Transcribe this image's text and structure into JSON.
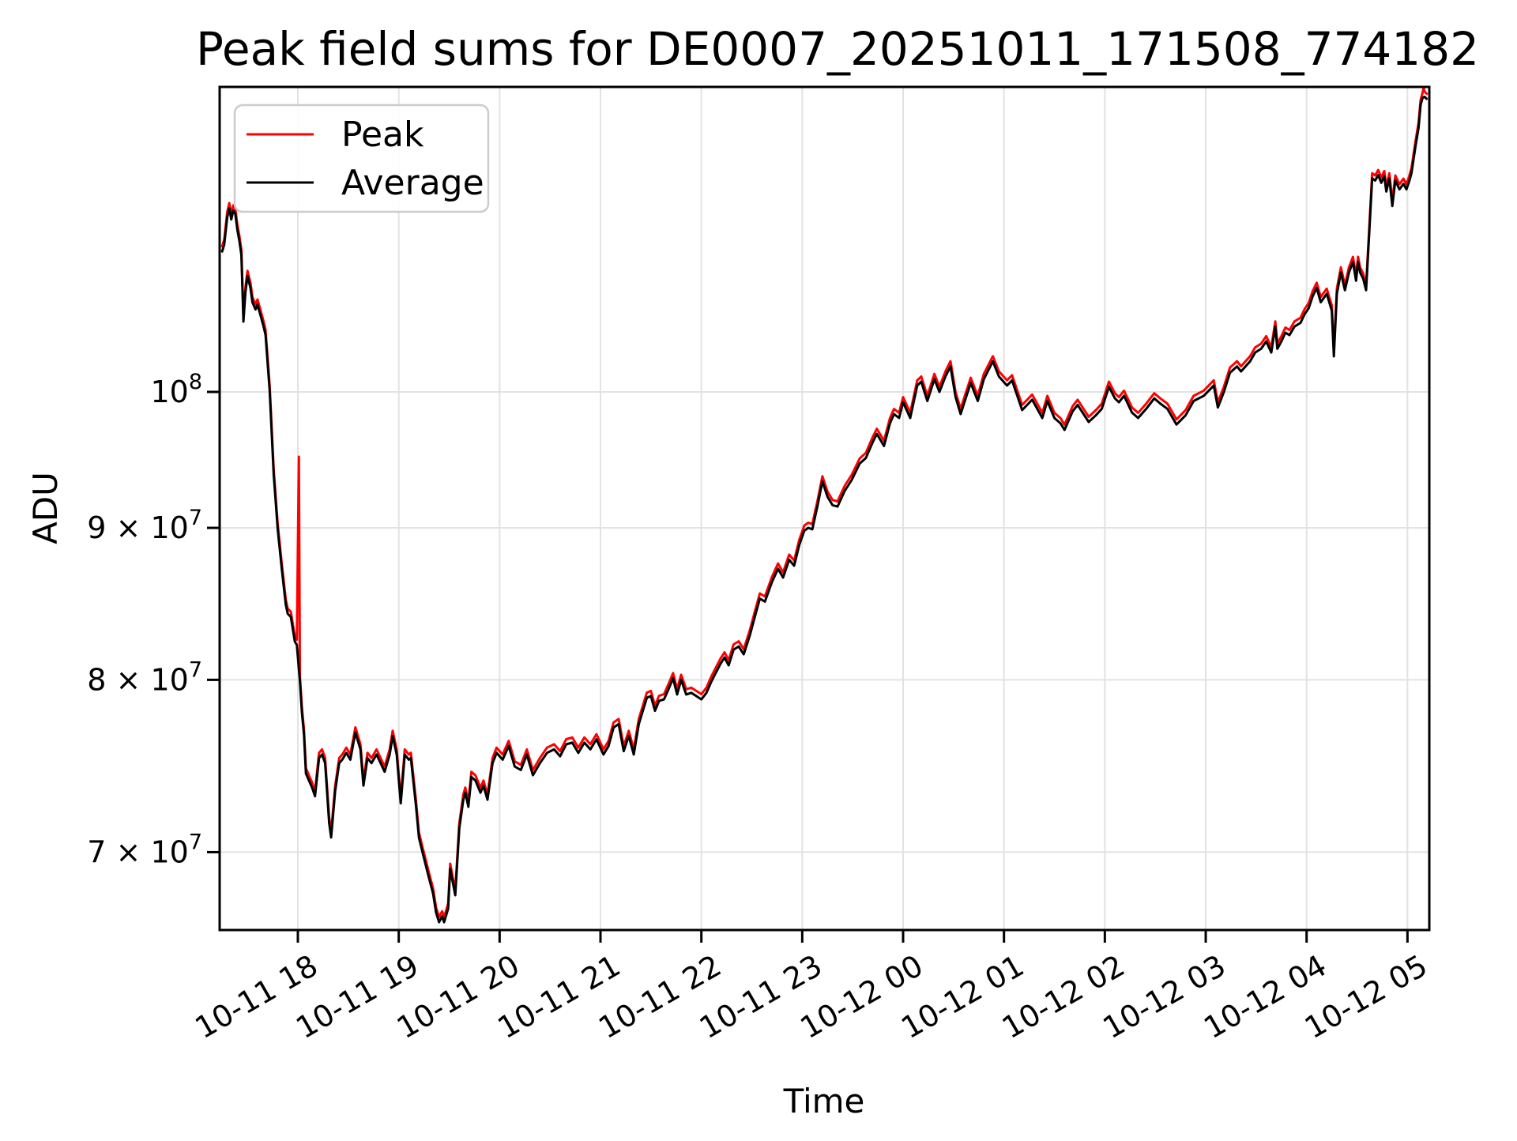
{
  "figure": {
    "background": "#ffffff",
    "title": "Peak field sums for DE0007_20251011_171508_774182"
  },
  "chart_data": {
    "type": "line",
    "title": "Peak field sums for DE0007_20251011_171508_774182",
    "xlabel": "Time",
    "ylabel": "ADU",
    "yscale": "log",
    "grid": true,
    "grid_color": "#e2e2e2",
    "axis_color": "#000000",
    "ylim_e7": [
      6.58,
      12.71
    ],
    "xlim_hours": [
      17.22,
      29.23
    ],
    "x_ticks": [
      {
        "t": 18,
        "label": "10-11 18"
      },
      {
        "t": 19,
        "label": "10-11 19"
      },
      {
        "t": 20,
        "label": "10-11 20"
      },
      {
        "t": 21,
        "label": "10-11 21"
      },
      {
        "t": 22,
        "label": "10-11 22"
      },
      {
        "t": 23,
        "label": "10-11 23"
      },
      {
        "t": 24,
        "label": "10-12 00"
      },
      {
        "t": 25,
        "label": "10-12 01"
      },
      {
        "t": 26,
        "label": "10-12 02"
      },
      {
        "t": 27,
        "label": "10-12 03"
      },
      {
        "t": 28,
        "label": "10-12 04"
      },
      {
        "t": 29,
        "label": "10-12 05"
      }
    ],
    "y_ticks": [
      {
        "v_e7": 10,
        "base": "10",
        "sup": "8"
      },
      {
        "v_e7": 9,
        "base": "9 × 10",
        "sup": "7"
      },
      {
        "v_e7": 8,
        "base": "8 × 10",
        "sup": "7"
      },
      {
        "v_e7": 7,
        "base": "7 × 10",
        "sup": "7"
      }
    ],
    "legend": {
      "position": "upper-left",
      "border_color": "#cccccc",
      "background": "#ffffff"
    },
    "series": [
      {
        "name": "Peak",
        "color": "#ff0000",
        "derived": "average_times_ratio",
        "offset_ratio": 1.004,
        "anomalies_e7": [
          [
            18.01,
            9.51
          ],
          [
            29.16,
            12.66
          ]
        ]
      },
      {
        "name": "Average",
        "color": "#000000",
        "unit_scale": 10000000.0,
        "points_e7": [
          [
            17.25,
            11.15
          ],
          [
            17.27,
            11.21
          ],
          [
            17.3,
            11.45
          ],
          [
            17.32,
            11.53
          ],
          [
            17.34,
            11.43
          ],
          [
            17.36,
            11.51
          ],
          [
            17.38,
            11.48
          ],
          [
            17.4,
            11.34
          ],
          [
            17.42,
            11.24
          ],
          [
            17.44,
            11.12
          ],
          [
            17.46,
            10.56
          ],
          [
            17.48,
            10.8
          ],
          [
            17.5,
            10.94
          ],
          [
            17.53,
            10.84
          ],
          [
            17.55,
            10.72
          ],
          [
            17.58,
            10.66
          ],
          [
            17.6,
            10.7
          ],
          [
            17.63,
            10.61
          ],
          [
            17.66,
            10.52
          ],
          [
            17.68,
            10.45
          ],
          [
            17.72,
            10.01
          ],
          [
            17.76,
            9.38
          ],
          [
            17.8,
            8.99
          ],
          [
            17.84,
            8.72
          ],
          [
            17.88,
            8.48
          ],
          [
            17.9,
            8.42
          ],
          [
            17.93,
            8.4
          ],
          [
            17.97,
            8.24
          ],
          [
            17.99,
            8.22
          ],
          [
            18.02,
            7.99
          ],
          [
            18.04,
            7.8
          ],
          [
            18.06,
            7.67
          ],
          [
            18.08,
            7.44
          ],
          [
            18.11,
            7.4
          ],
          [
            18.14,
            7.36
          ],
          [
            18.17,
            7.31
          ],
          [
            18.21,
            7.53
          ],
          [
            18.24,
            7.55
          ],
          [
            18.27,
            7.5
          ],
          [
            18.31,
            7.16
          ],
          [
            18.33,
            7.08
          ],
          [
            18.37,
            7.34
          ],
          [
            18.41,
            7.5
          ],
          [
            18.44,
            7.52
          ],
          [
            18.48,
            7.56
          ],
          [
            18.52,
            7.52
          ],
          [
            18.57,
            7.68
          ],
          [
            18.62,
            7.58
          ],
          [
            18.65,
            7.37
          ],
          [
            18.69,
            7.53
          ],
          [
            18.73,
            7.5
          ],
          [
            18.78,
            7.55
          ],
          [
            18.82,
            7.5
          ],
          [
            18.86,
            7.45
          ],
          [
            18.91,
            7.55
          ],
          [
            18.94,
            7.66
          ],
          [
            18.98,
            7.55
          ],
          [
            19.02,
            7.27
          ],
          [
            19.06,
            7.55
          ],
          [
            19.1,
            7.52
          ],
          [
            19.12,
            7.53
          ],
          [
            19.17,
            7.26
          ],
          [
            19.2,
            7.08
          ],
          [
            19.24,
            6.99
          ],
          [
            19.3,
            6.86
          ],
          [
            19.34,
            6.78
          ],
          [
            19.37,
            6.68
          ],
          [
            19.4,
            6.63
          ],
          [
            19.43,
            6.66
          ],
          [
            19.45,
            6.63
          ],
          [
            19.49,
            6.7
          ],
          [
            19.51,
            6.91
          ],
          [
            19.56,
            6.77
          ],
          [
            19.6,
            7.13
          ],
          [
            19.64,
            7.29
          ],
          [
            19.66,
            7.33
          ],
          [
            19.69,
            7.25
          ],
          [
            19.72,
            7.42
          ],
          [
            19.76,
            7.4
          ],
          [
            19.81,
            7.33
          ],
          [
            19.84,
            7.37
          ],
          [
            19.88,
            7.29
          ],
          [
            19.93,
            7.5
          ],
          [
            19.97,
            7.56
          ],
          [
            20.03,
            7.52
          ],
          [
            20.09,
            7.6
          ],
          [
            20.15,
            7.48
          ],
          [
            20.21,
            7.46
          ],
          [
            20.27,
            7.55
          ],
          [
            20.33,
            7.43
          ],
          [
            20.4,
            7.5
          ],
          [
            20.47,
            7.56
          ],
          [
            20.54,
            7.58
          ],
          [
            20.6,
            7.54
          ],
          [
            20.66,
            7.61
          ],
          [
            20.72,
            7.62
          ],
          [
            20.78,
            7.56
          ],
          [
            20.84,
            7.62
          ],
          [
            20.9,
            7.58
          ],
          [
            20.96,
            7.64
          ],
          [
            21.03,
            7.55
          ],
          [
            21.08,
            7.6
          ],
          [
            21.13,
            7.71
          ],
          [
            21.18,
            7.73
          ],
          [
            21.23,
            7.57
          ],
          [
            21.28,
            7.66
          ],
          [
            21.33,
            7.55
          ],
          [
            21.38,
            7.73
          ],
          [
            21.42,
            7.81
          ],
          [
            21.46,
            7.89
          ],
          [
            21.5,
            7.9
          ],
          [
            21.54,
            7.81
          ],
          [
            21.58,
            7.87
          ],
          [
            21.63,
            7.88
          ],
          [
            21.68,
            7.95
          ],
          [
            21.72,
            8.01
          ],
          [
            21.76,
            7.91
          ],
          [
            21.8,
            8.0
          ],
          [
            21.85,
            7.91
          ],
          [
            21.9,
            7.92
          ],
          [
            21.95,
            7.9
          ],
          [
            22.0,
            7.88
          ],
          [
            22.05,
            7.92
          ],
          [
            22.1,
            7.99
          ],
          [
            22.14,
            8.04
          ],
          [
            22.19,
            8.1
          ],
          [
            22.23,
            8.14
          ],
          [
            22.27,
            8.09
          ],
          [
            22.32,
            8.19
          ],
          [
            22.37,
            8.21
          ],
          [
            22.42,
            8.16
          ],
          [
            22.48,
            8.28
          ],
          [
            22.53,
            8.4
          ],
          [
            22.58,
            8.52
          ],
          [
            22.63,
            8.5
          ],
          [
            22.7,
            8.63
          ],
          [
            22.76,
            8.72
          ],
          [
            22.81,
            8.66
          ],
          [
            22.87,
            8.78
          ],
          [
            22.92,
            8.74
          ],
          [
            22.97,
            8.88
          ],
          [
            23.02,
            8.98
          ],
          [
            23.06,
            9.0
          ],
          [
            23.1,
            8.99
          ],
          [
            23.15,
            9.15
          ],
          [
            23.2,
            9.33
          ],
          [
            23.25,
            9.22
          ],
          [
            23.3,
            9.16
          ],
          [
            23.35,
            9.15
          ],
          [
            23.42,
            9.26
          ],
          [
            23.49,
            9.34
          ],
          [
            23.57,
            9.46
          ],
          [
            23.63,
            9.5
          ],
          [
            23.7,
            9.62
          ],
          [
            23.74,
            9.68
          ],
          [
            23.81,
            9.59
          ],
          [
            23.87,
            9.76
          ],
          [
            23.91,
            9.83
          ],
          [
            23.96,
            9.8
          ],
          [
            24.0,
            9.92
          ],
          [
            24.07,
            9.8
          ],
          [
            24.14,
            10.05
          ],
          [
            24.18,
            10.08
          ],
          [
            24.24,
            9.93
          ],
          [
            24.31,
            10.1
          ],
          [
            24.36,
            10.0
          ],
          [
            24.42,
            10.12
          ],
          [
            24.47,
            10.2
          ],
          [
            24.52,
            9.96
          ],
          [
            24.57,
            9.83
          ],
          [
            24.62,
            9.95
          ],
          [
            24.67,
            10.07
          ],
          [
            24.74,
            9.93
          ],
          [
            24.8,
            10.1
          ],
          [
            24.89,
            10.24
          ],
          [
            24.95,
            10.12
          ],
          [
            25.03,
            10.05
          ],
          [
            25.08,
            10.09
          ],
          [
            25.18,
            9.86
          ],
          [
            25.28,
            9.94
          ],
          [
            25.38,
            9.8
          ],
          [
            25.43,
            9.93
          ],
          [
            25.5,
            9.8
          ],
          [
            25.56,
            9.76
          ],
          [
            25.6,
            9.71
          ],
          [
            25.68,
            9.85
          ],
          [
            25.73,
            9.9
          ],
          [
            25.84,
            9.77
          ],
          [
            25.91,
            9.82
          ],
          [
            25.97,
            9.87
          ],
          [
            26.04,
            10.04
          ],
          [
            26.1,
            9.95
          ],
          [
            26.14,
            9.92
          ],
          [
            26.19,
            9.97
          ],
          [
            26.27,
            9.84
          ],
          [
            26.33,
            9.8
          ],
          [
            26.41,
            9.87
          ],
          [
            26.49,
            9.95
          ],
          [
            26.55,
            9.91
          ],
          [
            26.62,
            9.87
          ],
          [
            26.71,
            9.75
          ],
          [
            26.8,
            9.82
          ],
          [
            26.88,
            9.93
          ],
          [
            26.98,
            9.97
          ],
          [
            27.08,
            10.05
          ],
          [
            27.12,
            9.88
          ],
          [
            27.18,
            10.0
          ],
          [
            27.24,
            10.15
          ],
          [
            27.31,
            10.2
          ],
          [
            27.35,
            10.16
          ],
          [
            27.44,
            10.24
          ],
          [
            27.49,
            10.31
          ],
          [
            27.55,
            10.34
          ],
          [
            27.6,
            10.4
          ],
          [
            27.65,
            10.31
          ],
          [
            27.69,
            10.52
          ],
          [
            27.71,
            10.34
          ],
          [
            27.75,
            10.4
          ],
          [
            27.79,
            10.47
          ],
          [
            27.83,
            10.45
          ],
          [
            27.88,
            10.52
          ],
          [
            27.94,
            10.55
          ],
          [
            27.98,
            10.62
          ],
          [
            28.02,
            10.67
          ],
          [
            28.06,
            10.77
          ],
          [
            28.1,
            10.84
          ],
          [
            28.14,
            10.72
          ],
          [
            28.2,
            10.79
          ],
          [
            28.25,
            10.65
          ],
          [
            28.27,
            10.28
          ],
          [
            28.3,
            10.79
          ],
          [
            28.34,
            10.97
          ],
          [
            28.38,
            10.82
          ],
          [
            28.42,
            10.97
          ],
          [
            28.46,
            11.06
          ],
          [
            28.49,
            10.9
          ],
          [
            28.51,
            11.06
          ],
          [
            28.53,
            10.97
          ],
          [
            28.56,
            10.92
          ],
          [
            28.59,
            10.82
          ],
          [
            28.62,
            11.3
          ],
          [
            28.65,
            11.8
          ],
          [
            28.68,
            11.78
          ],
          [
            28.71,
            11.83
          ],
          [
            28.74,
            11.76
          ],
          [
            28.77,
            11.82
          ],
          [
            28.79,
            11.68
          ],
          [
            28.82,
            11.8
          ],
          [
            28.85,
            11.55
          ],
          [
            28.88,
            11.78
          ],
          [
            28.92,
            11.7
          ],
          [
            28.96,
            11.75
          ],
          [
            28.99,
            11.7
          ],
          [
            29.02,
            11.78
          ],
          [
            29.04,
            11.85
          ],
          [
            29.08,
            12.1
          ],
          [
            29.11,
            12.27
          ],
          [
            29.13,
            12.49
          ],
          [
            29.15,
            12.56
          ],
          [
            29.17,
            12.57
          ],
          [
            29.19,
            12.55
          ]
        ]
      }
    ]
  }
}
